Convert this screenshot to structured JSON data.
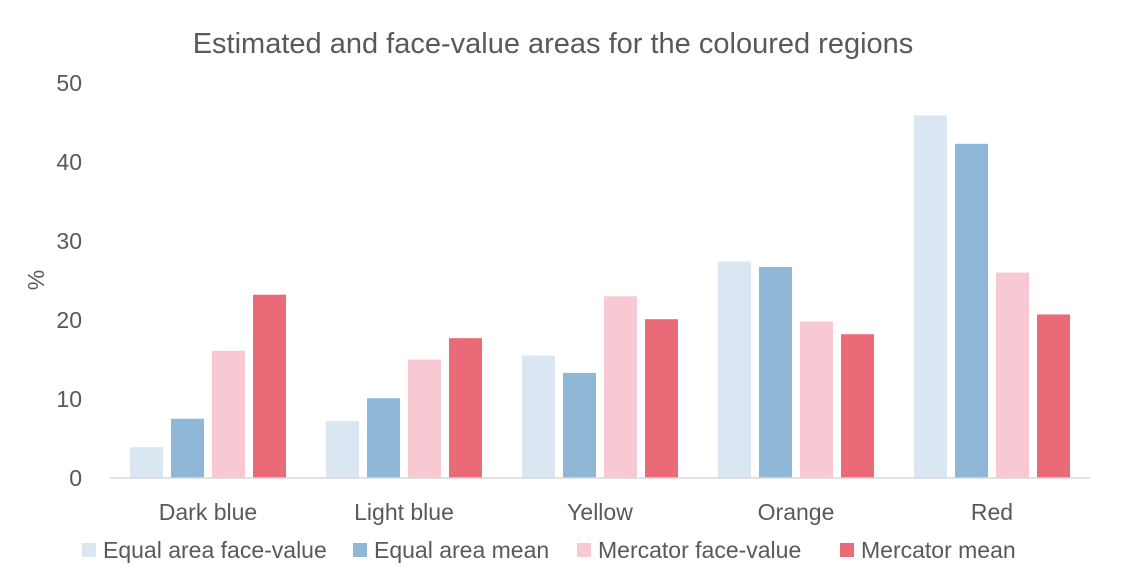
{
  "chart_data": {
    "type": "bar",
    "title": "Estimated and face-value areas for the coloured regions",
    "xlabel": "",
    "ylabel": "%",
    "ylim": [
      0,
      50
    ],
    "yticks": [
      0,
      10,
      20,
      30,
      40,
      50
    ],
    "grid": false,
    "legend_position": "bottom",
    "categories": [
      "Dark blue",
      "Light blue",
      "Yellow",
      "Orange",
      "Red"
    ],
    "series": [
      {
        "name": "Equal area face-value",
        "color": "#dae6f2",
        "values": [
          3.9,
          7.2,
          15.5,
          27.4,
          45.9
        ]
      },
      {
        "name": "Equal area mean",
        "color": "#8fb8d8",
        "values": [
          7.5,
          10.1,
          13.3,
          26.7,
          42.3
        ]
      },
      {
        "name": "Mercator face-value",
        "color": "#f8c9d2",
        "values": [
          16.1,
          15.0,
          23.0,
          19.8,
          26.0
        ]
      },
      {
        "name": "Mercator mean",
        "color": "#eb6a78",
        "values": [
          23.2,
          17.7,
          20.1,
          18.2,
          20.7
        ]
      }
    ]
  }
}
